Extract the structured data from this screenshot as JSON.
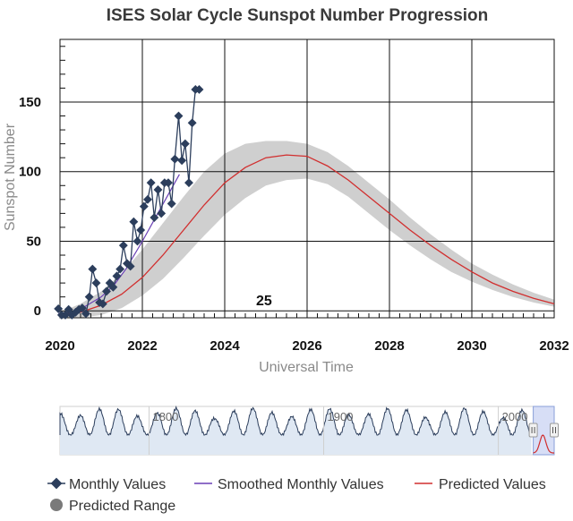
{
  "chart_data": {
    "type": "line",
    "title": "ISES Solar Cycle Sunspot Number Progression",
    "xlabel": "Universal Time",
    "ylabel": "Sunspot Number",
    "xlim": [
      2020,
      2032
    ],
    "ylim": [
      -5,
      195
    ],
    "x_ticks": [
      "2020",
      "2022",
      "2024",
      "2026",
      "2028",
      "2030",
      "2032"
    ],
    "y_ticks": [
      "0",
      "50",
      "100",
      "150"
    ],
    "annotation": "25",
    "series": [
      {
        "name": "Monthly Values",
        "color": "#2c3e5c",
        "x": [
          2019.96,
          2020.04,
          2020.13,
          2020.21,
          2020.29,
          2020.38,
          2020.46,
          2020.54,
          2020.63,
          2020.71,
          2020.79,
          2020.88,
          2020.96,
          2021.04,
          2021.13,
          2021.21,
          2021.29,
          2021.38,
          2021.46,
          2021.54,
          2021.63,
          2021.71,
          2021.79,
          2021.88,
          2021.96,
          2022.04,
          2022.13,
          2022.21,
          2022.29,
          2022.38,
          2022.46,
          2022.54,
          2022.63,
          2022.71,
          2022.79,
          2022.88,
          2022.96,
          2023.04,
          2023.13,
          2023.21,
          2023.29,
          2023.38
        ],
        "values": [
          1.5,
          -3,
          -3,
          1,
          -3,
          -1,
          1,
          2,
          -2,
          10,
          30,
          20,
          6,
          5,
          14,
          20,
          17,
          25,
          30,
          47,
          34,
          32,
          64,
          50,
          58,
          75,
          80,
          92,
          67,
          87,
          70,
          92,
          92,
          77,
          109,
          140,
          108,
          120,
          92,
          135,
          159,
          159
        ]
      },
      {
        "name": "Smoothed Monthly Values",
        "color": "#6a3fb5",
        "x": [
          2019.96,
          2020.3,
          2020.6,
          2021.0,
          2021.3,
          2021.6,
          2022.0,
          2022.3,
          2022.6,
          2022.9
        ],
        "values": [
          -2,
          -1,
          3,
          10,
          18,
          30,
          50,
          66,
          82,
          98
        ]
      },
      {
        "name": "Predicted Values",
        "color": "#d12f2f",
        "x": [
          2020.0,
          2020.5,
          2021.0,
          2021.5,
          2022.0,
          2022.5,
          2023.0,
          2023.5,
          2024.0,
          2024.5,
          2025.0,
          2025.5,
          2026.0,
          2026.5,
          2027.0,
          2027.5,
          2028.0,
          2028.5,
          2029.0,
          2029.5,
          2030.0,
          2030.5,
          2031.0,
          2031.5,
          2032.0
        ],
        "values": [
          -3,
          -1,
          4,
          12,
          24,
          40,
          58,
          76,
          92,
          103,
          110,
          112,
          111,
          104,
          94,
          82,
          70,
          58,
          47,
          37,
          28,
          20,
          14,
          9,
          5
        ]
      },
      {
        "name": "Predicted Range",
        "color": "#cfcfcf",
        "x": [
          2020.0,
          2020.5,
          2021.0,
          2021.5,
          2022.0,
          2022.5,
          2023.0,
          2023.5,
          2024.0,
          2024.5,
          2025.0,
          2025.5,
          2026.0,
          2026.5,
          2027.0,
          2027.5,
          2028.0,
          2028.5,
          2029.0,
          2029.5,
          2030.0,
          2030.5,
          2031.0,
          2031.5,
          2032.0
        ],
        "upper": [
          -1,
          5,
          14,
          27,
          44,
          63,
          82,
          100,
          113,
          120,
          122,
          122,
          120,
          114,
          104,
          92,
          80,
          67,
          55,
          44,
          34,
          26,
          19,
          13,
          8
        ],
        "lower": [
          -5,
          -5,
          -3,
          2,
          11,
          23,
          38,
          54,
          69,
          81,
          90,
          94,
          95,
          91,
          82,
          70,
          58,
          47,
          37,
          28,
          21,
          15,
          10,
          6,
          3
        ]
      }
    ],
    "navigator": {
      "labels": [
        "1800",
        "1900",
        "2000"
      ]
    }
  },
  "legend": {
    "monthly": "Monthly Values",
    "smoothed": "Smoothed Monthly Values",
    "predicted": "Predicted Values",
    "range": "Predicted Range"
  },
  "colors": {
    "monthly": "#2c3e5c",
    "smoothed": "#6a3fb5",
    "predicted": "#d12f2f",
    "range": "#cfcfcf",
    "navigator_fill": "#dfe8f3",
    "navigator_line": "#2c3e5c",
    "navigator_selection": "#bcc8f0"
  }
}
